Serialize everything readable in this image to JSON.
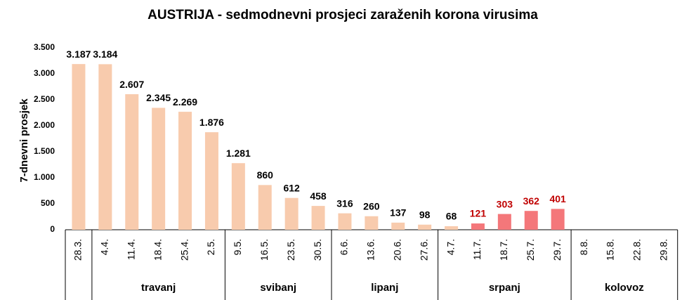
{
  "chart_data": {
    "type": "bar",
    "title": "AUSTRIJA - sedmodnevni prosjeci zaraženih korona virusima",
    "y_label": "7-dnevni prosjek",
    "categories": [
      "28.3.",
      "4.4.",
      "11.4.",
      "18.4.",
      "25.4.",
      "2.5.",
      "9.5.",
      "16.5.",
      "23.5.",
      "30.5.",
      "6.6.",
      "13.6.",
      "20.6.",
      "27.6.",
      "4.7.",
      "11.7.",
      "18.7.",
      "25.7.",
      "29.7.",
      "8.8.",
      "15.8.",
      "22.8.",
      "29.8."
    ],
    "values": [
      3187,
      3184,
      2607,
      2345,
      2269,
      1876,
      1281,
      860,
      612,
      458,
      316,
      260,
      137,
      98,
      68,
      121,
      303,
      362,
      401,
      null,
      null,
      null,
      null
    ],
    "value_labels": [
      "3.187",
      "3.184",
      "2.607",
      "2.345",
      "2.269",
      "1.876",
      "1.281",
      "860",
      "612",
      "458",
      "316",
      "260",
      "137",
      "98",
      "68",
      "121",
      "303",
      "362",
      "401",
      null,
      null,
      null,
      null
    ],
    "colors": [
      "#f8cbad",
      "#f8cbad",
      "#f8cbad",
      "#f8cbad",
      "#f8cbad",
      "#f8cbad",
      "#f8cbad",
      "#f8cbad",
      "#f8cbad",
      "#f8cbad",
      "#f8cbad",
      "#f8cbad",
      "#f8cbad",
      "#f8cbad",
      "#f8cbad",
      "#f4777a",
      "#f4777a",
      "#f4777a",
      "#f4777a",
      null,
      null,
      null,
      null
    ],
    "value_label_colors": [
      "#000000",
      "#000000",
      "#000000",
      "#000000",
      "#000000",
      "#000000",
      "#000000",
      "#000000",
      "#000000",
      "#000000",
      "#000000",
      "#000000",
      "#000000",
      "#000000",
      "#000000",
      "#c00000",
      "#c00000",
      "#c00000",
      "#c00000",
      null,
      null,
      null,
      null
    ],
    "groups": [
      {
        "label": null,
        "size": 1
      },
      {
        "label": "travanj",
        "size": 5
      },
      {
        "label": "svibanj",
        "size": 4
      },
      {
        "label": "lipanj",
        "size": 4
      },
      {
        "label": "srpanj",
        "size": 5
      },
      {
        "label": "kolovoz",
        "size": 4
      }
    ],
    "ylim": [
      0,
      3500
    ],
    "yticks": [
      0,
      500,
      {
        "value": 1000,
        "label": "1.000"
      },
      {
        "value": 1500,
        "label": "1.500"
      },
      {
        "value": 2000,
        "label": "2.000"
      },
      {
        "value": 2500,
        "label": "2.500"
      },
      {
        "value": 3000,
        "label": "3.000"
      },
      {
        "value": 3500,
        "label": "3.500"
      }
    ],
    "grid": false
  }
}
